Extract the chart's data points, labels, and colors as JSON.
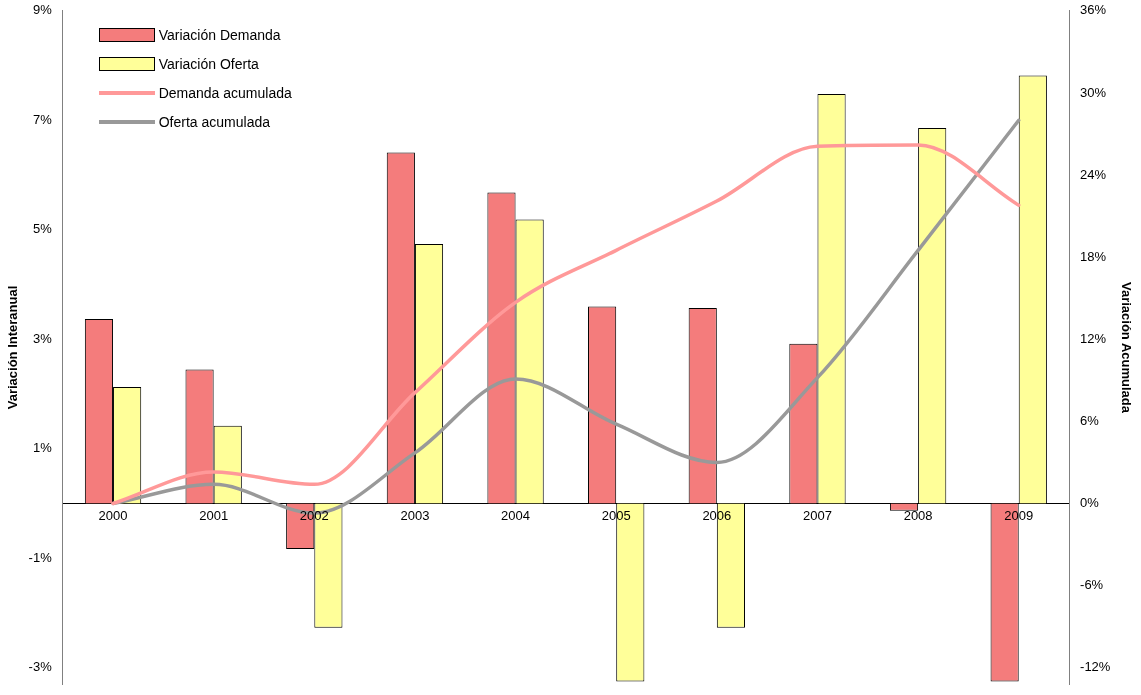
{
  "chart_data": {
    "type": "bar",
    "categories": [
      "2000",
      "2001",
      "2002",
      "2003",
      "2004",
      "2005",
      "2006",
      "2007",
      "2008",
      "2009"
    ],
    "series": [
      {
        "name": "Variación Demanda",
        "color": "#f47c7c",
        "values": [
          3.37,
          2.45,
          -0.83,
          6.41,
          5.68,
          3.6,
          3.57,
          2.92,
          -0.13,
          -3.25
        ]
      },
      {
        "name": "Variación Oferta",
        "color": "#ffff99",
        "values": [
          2.13,
          1.42,
          -2.27,
          4.74,
          5.19,
          -3.25,
          -2.27,
          7.48,
          6.86,
          7.82
        ]
      },
      {
        "name": "Demanda acumulada",
        "type": "line",
        "axis": "y2",
        "color": "#ff9999",
        "values": [
          0,
          2.3,
          1.4,
          8.1,
          14.7,
          18.5,
          22.1,
          26.1,
          26.2,
          21.8
        ]
      },
      {
        "name": "Oferta acumulada",
        "type": "line",
        "axis": "y2",
        "color": "#999999",
        "values": [
          0,
          1.4,
          -0.7,
          3.7,
          9.1,
          5.8,
          3,
          9.2,
          18.5,
          28
        ]
      }
    ],
    "ylabel": "Variación Interanual",
    "y2label": "Variación Acumulada",
    "ylim": [
      -3.3,
      9
    ],
    "yticks": [
      {
        "value": -3,
        "label": "-3%"
      },
      {
        "value": -1,
        "label": "-1%"
      },
      {
        "value": 1,
        "label": "1%"
      },
      {
        "value": 3,
        "label": "3%"
      },
      {
        "value": 5,
        "label": "5%"
      },
      {
        "value": 7,
        "label": "7%"
      },
      {
        "value": 9,
        "label": "9%"
      }
    ],
    "y2lim": [
      -13.2,
      36
    ],
    "y2ticks": [
      {
        "value": -12,
        "label": "-12%"
      },
      {
        "value": -6,
        "label": "-6%"
      },
      {
        "value": 0,
        "label": "0%"
      },
      {
        "value": 6,
        "label": "6%"
      },
      {
        "value": 12,
        "label": "12%"
      },
      {
        "value": 18,
        "label": "18%"
      },
      {
        "value": 24,
        "label": "24%"
      },
      {
        "value": 30,
        "label": "30%"
      },
      {
        "value": 36,
        "label": "36%"
      }
    ],
    "grid": false,
    "legend": "top left",
    "marker": "none",
    "line_style": "solid"
  }
}
